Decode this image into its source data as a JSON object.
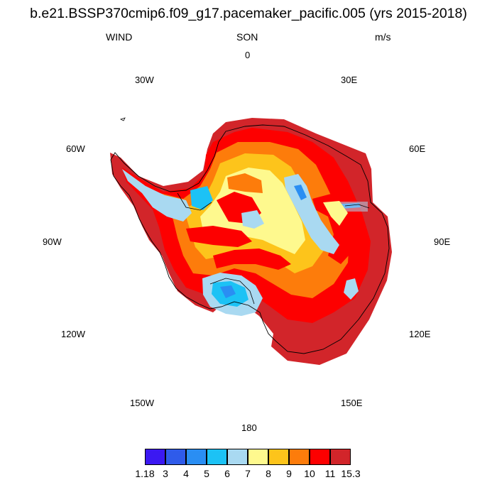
{
  "title": "b.e21.BSSP370cmip6.f09_g17.pacemaker_pacific.005 (yrs 2015-2018)",
  "variable": "WIND",
  "season": "SON",
  "units": "m/s",
  "longitude_labels": {
    "lon_0": "0",
    "lon_30e": "30E",
    "lon_60e": "60E",
    "lon_90e": "90E",
    "lon_120e": "120E",
    "lon_150e": "150E",
    "lon_180": "180",
    "lon_150w": "150W",
    "lon_120w": "120W",
    "lon_90w": "90W",
    "lon_60w": "60W",
    "lon_30w": "30W"
  },
  "colorbar": {
    "colors": [
      "#3b18f2",
      "#2f5bea",
      "#2a8ef3",
      "#1cc2f5",
      "#a9d9f1",
      "#fef98e",
      "#fdc41b",
      "#fd7c0b",
      "#fd0000",
      "#d2252a"
    ],
    "labels": [
      "1.18",
      "3",
      "4",
      "5",
      "6",
      "7",
      "8",
      "9",
      "10",
      "11",
      "15.3"
    ]
  }
}
